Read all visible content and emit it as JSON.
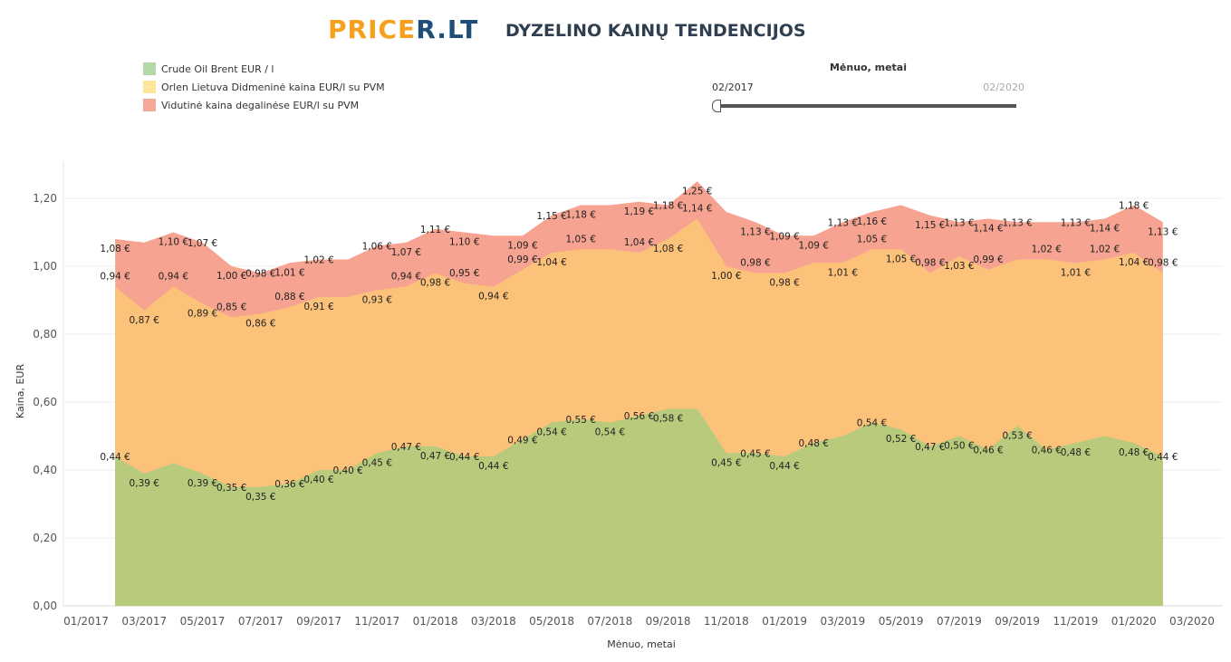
{
  "header": {
    "logo_part1": "PRICE",
    "logo_part2": "R.LT",
    "title": "DYZELINO KAINŲ TENDENCIJOS"
  },
  "legend": [
    {
      "label": "Crude Oil Brent EUR / l",
      "color": "#b7cc7e"
    },
    {
      "label": "Orlen Lietuva Didmeninė kaina EUR/l su PVM",
      "color": "#ffe599"
    },
    {
      "label": "Vidutinė kaina degalinėse EUR/l su PVM",
      "color": "#f7a090"
    }
  ],
  "slider": {
    "title": "Mėnuo, metai",
    "min_label": "02/2017",
    "max_label": "02/2020"
  },
  "colors": {
    "brent": "#b8cb7d",
    "orlen": "#fdc27a",
    "avg": "#f7a392"
  },
  "chart_data": {
    "type": "area",
    "xlabel": "Mėnuo, metai",
    "ylabel": "Kaina, EUR",
    "ylim": [
      0,
      1.3
    ],
    "yticks": [
      "0,00",
      "0,20",
      "0,40",
      "0,60",
      "0,80",
      "1,00",
      "1,20"
    ],
    "xticks": [
      "01/2017",
      "03/2017",
      "05/2017",
      "07/2017",
      "09/2017",
      "11/2017",
      "01/2018",
      "03/2018",
      "05/2018",
      "07/2018",
      "09/2018",
      "11/2018",
      "01/2019",
      "03/2019",
      "05/2019",
      "07/2019",
      "09/2019",
      "11/2019",
      "01/2020",
      "03/2020"
    ],
    "x": [
      "02/2017",
      "03/2017",
      "04/2017",
      "05/2017",
      "06/2017",
      "07/2017",
      "08/2017",
      "09/2017",
      "10/2017",
      "11/2017",
      "12/2017",
      "01/2018",
      "02/2018",
      "03/2018",
      "04/2018",
      "05/2018",
      "06/2018",
      "07/2018",
      "08/2018",
      "09/2018",
      "10/2018",
      "11/2018",
      "12/2018",
      "01/2019",
      "02/2019",
      "03/2019",
      "04/2019",
      "05/2019",
      "06/2019",
      "07/2019",
      "08/2019",
      "09/2019",
      "10/2019",
      "11/2019",
      "12/2019",
      "01/2020",
      "02/2020"
    ],
    "series": [
      {
        "name": "Crude Oil Brent EUR / l",
        "values": [
          0.44,
          0.39,
          0.42,
          0.39,
          0.35,
          0.35,
          0.36,
          0.4,
          0.4,
          0.45,
          0.47,
          0.47,
          0.44,
          0.44,
          0.49,
          0.54,
          0.55,
          0.54,
          0.56,
          0.58,
          0.58,
          0.45,
          0.45,
          0.44,
          0.48,
          0.5,
          0.54,
          0.52,
          0.47,
          0.5,
          0.46,
          0.53,
          0.46,
          0.48,
          0.5,
          0.48,
          0.44
        ],
        "labels": [
          "0,44 €",
          "0,39 €",
          "",
          "0,39 €",
          "0,35 €",
          "0,35 €",
          "0,36 €",
          "0,40 €",
          "0,40 €",
          "0,45 €",
          "0,47 €",
          "0,47 €",
          "0,44 €",
          "0,44 €",
          "0,49 €",
          "0,54 €",
          "0,55 €",
          "0,54 €",
          "0,56 €",
          "0,58 €",
          "",
          "0,45 €",
          "0,45 €",
          "0,44 €",
          "0,48 €",
          "",
          "0,54 €",
          "0,52 €",
          "0,47 €",
          "0,50 €",
          "0,46 €",
          "0,53 €",
          "0,46 €",
          "0,48 €",
          "",
          "0,48 €",
          "0,44 €"
        ]
      },
      {
        "name": "Orlen Lietuva Didmeninė kaina EUR/l su PVM",
        "values": [
          0.94,
          0.87,
          0.94,
          0.89,
          0.85,
          0.86,
          0.88,
          0.91,
          0.91,
          0.93,
          0.94,
          0.98,
          0.95,
          0.94,
          0.99,
          1.04,
          1.05,
          1.05,
          1.04,
          1.08,
          1.14,
          1.0,
          0.98,
          0.98,
          1.01,
          1.01,
          1.05,
          1.05,
          0.98,
          1.03,
          0.99,
          1.02,
          1.02,
          1.01,
          1.02,
          1.04,
          0.98
        ],
        "labels": [
          "0,94 €",
          "0,87 €",
          "0,94 €",
          "0,89 €",
          "0,85 €",
          "0,86 €",
          "0,88 €",
          "0,91 €",
          "",
          "0,93 €",
          "0,94 €",
          "0,98 €",
          "0,95 €",
          "0,94 €",
          "0,99 €",
          "1,04 €",
          "1,05 €",
          "",
          "1,04 €",
          "1,08 €",
          "1,14 €",
          "1,00 €",
          "0,98 €",
          "0,98 €",
          "",
          "1,01 €",
          "1,05 €",
          "1,05 €",
          "0,98 €",
          "1,03 €",
          "0,99 €",
          "",
          "1,02 €",
          "1,01 €",
          "1,02 €",
          "1,04 €",
          "0,98 €"
        ]
      },
      {
        "name": "Vidutinė kaina degalinėse EUR/l su PVM",
        "values": [
          1.08,
          1.07,
          1.1,
          1.07,
          1.0,
          0.98,
          1.01,
          1.02,
          1.02,
          1.06,
          1.07,
          1.11,
          1.1,
          1.09,
          1.09,
          1.15,
          1.18,
          1.18,
          1.19,
          1.18,
          1.25,
          1.16,
          1.13,
          1.09,
          1.09,
          1.13,
          1.16,
          1.18,
          1.15,
          1.13,
          1.14,
          1.13,
          1.13,
          1.13,
          1.14,
          1.18,
          1.13
        ],
        "labels": [
          "1,08 €",
          "",
          "1,10 €",
          "1,07 €",
          "1,00 €",
          "0,98 €",
          "1,01 €",
          "1,02 €",
          "",
          "1,06 €",
          "1,07 €",
          "1,11 €",
          "1,10 €",
          "",
          "1,09 €",
          "1,15 €",
          "1,18 €",
          "",
          "1,19 €",
          "1,18 €",
          "1,25 €",
          "",
          "1,13 €",
          "1,09 €",
          "1,09 €",
          "1,13 €",
          "1,16 €",
          "",
          "1,15 €",
          "1,13 €",
          "1,14 €",
          "1,13 €",
          "",
          "1,13 €",
          "1,14 €",
          "1,18 €",
          "1,13 €"
        ]
      }
    ]
  }
}
